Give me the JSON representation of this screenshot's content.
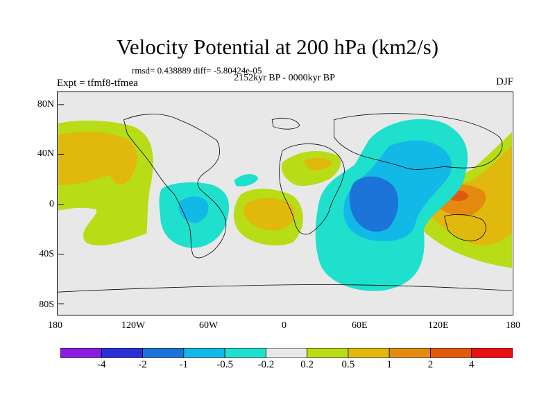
{
  "title": "Velocity Potential at 200 hPa (km2/s)",
  "stats": "rmsd= 0.438889  diff= -5.80424e-05",
  "period": "2152kyr BP - 0000kyr BP",
  "experiment": "Expt = tfmf8-tfmea",
  "season": "DJF",
  "lon_ticks": [
    "180",
    "120W",
    "60W",
    "0",
    "60E",
    "120E",
    "180"
  ],
  "lat_ticks": [
    "80N",
    "40N",
    "0",
    "40S",
    "80S"
  ],
  "colorbar": {
    "labels": [
      "-4",
      "-2",
      "-1",
      "-0.5",
      "-0.2",
      "0.2",
      "0.5",
      "1",
      "2",
      "4"
    ],
    "colors": [
      "#8a1ce0",
      "#2b2fd6",
      "#1d74d8",
      "#12b8e6",
      "#1ee0cc",
      "#e8e8e8",
      "#b8dc16",
      "#e0b80e",
      "#e48a10",
      "#e05a0c",
      "#e81010"
    ]
  },
  "map_colors": {
    "background": "#e8e8e8",
    "n05": "#1ee0cc",
    "n1": "#12b8e6",
    "n2": "#1d74d8",
    "p02": "#b8dc16",
    "p05": "#e0b80e",
    "p1": "#e48a10",
    "p2": "#e05a0c"
  }
}
